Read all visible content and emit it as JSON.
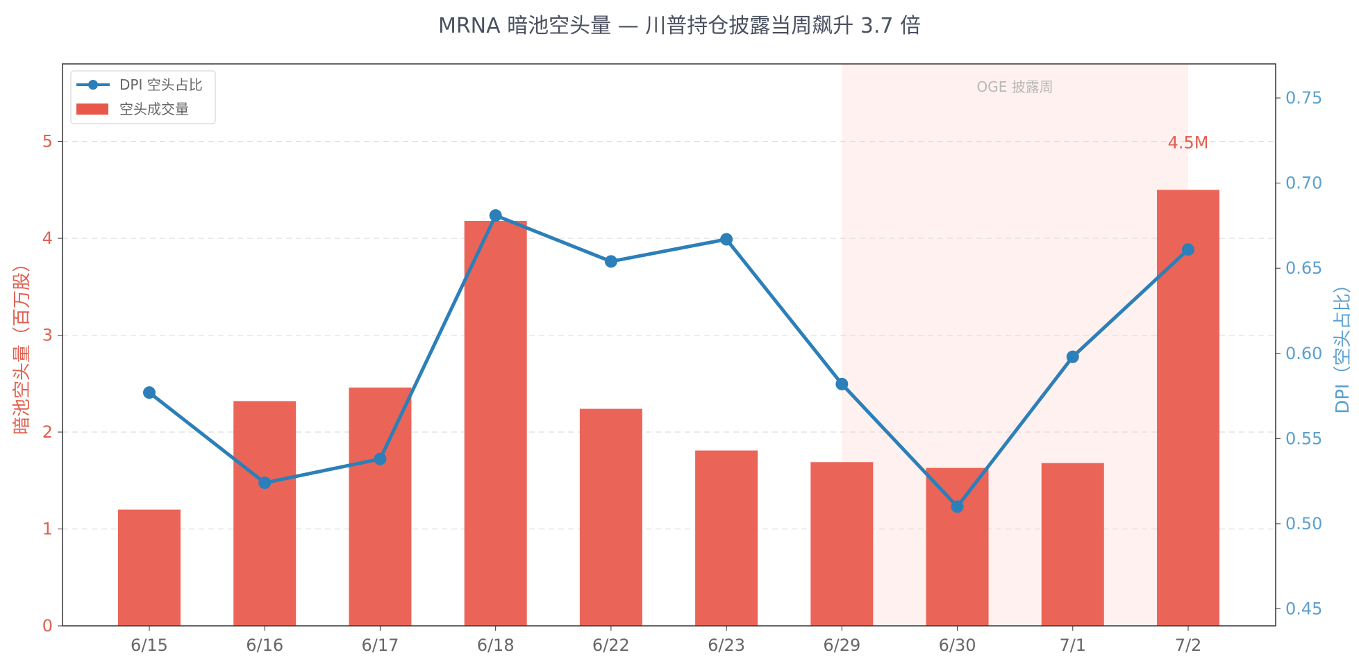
{
  "chart_data": {
    "type": "bar",
    "title": "MRNA 暗池空头量 — 川普持仓披露当周飙升 3.7 倍",
    "categories": [
      "6/15",
      "6/16",
      "6/17",
      "6/18",
      "6/22",
      "6/23",
      "6/29",
      "6/30",
      "7/1",
      "7/2"
    ],
    "series": [
      {
        "name": "空头成交量",
        "type": "bar",
        "axis": "left",
        "color": "#e8584a",
        "values": [
          1.2,
          2.32,
          2.46,
          4.18,
          2.24,
          1.81,
          1.69,
          1.63,
          1.68,
          4.5
        ]
      },
      {
        "name": "DPI 空头占比",
        "type": "line",
        "axis": "right",
        "color": "#2c7fb8",
        "values": [
          0.577,
          0.524,
          0.538,
          0.681,
          0.654,
          0.667,
          0.582,
          0.51,
          0.598,
          0.661
        ]
      }
    ],
    "ylabel": "暗池空头量（百万股）",
    "y2label": "DPI（空头占比）",
    "ylim": [
      0,
      5.8
    ],
    "y2lim": [
      0.44,
      0.77
    ],
    "yticks": [
      0,
      1,
      2,
      3,
      4,
      5
    ],
    "y2ticks": [
      0.45,
      0.5,
      0.55,
      0.6,
      0.65,
      0.7,
      0.75
    ],
    "y2tick_labels": [
      "0.45",
      "0.50",
      "0.55",
      "0.60",
      "0.65",
      "0.70",
      "0.75"
    ],
    "grid": true,
    "legend_placement": "top-left",
    "highlight": {
      "label": "OGE 披露周",
      "from_category": "6/29",
      "to_category": "7/2"
    },
    "annotation": {
      "text": "4.5M",
      "category": "7/2"
    },
    "colors": {
      "bar": "#e8584a",
      "line": "#2c7fb8",
      "left_axis": "#e06050",
      "right_axis": "#5aa0d0",
      "highlight": "#fdecea"
    }
  }
}
